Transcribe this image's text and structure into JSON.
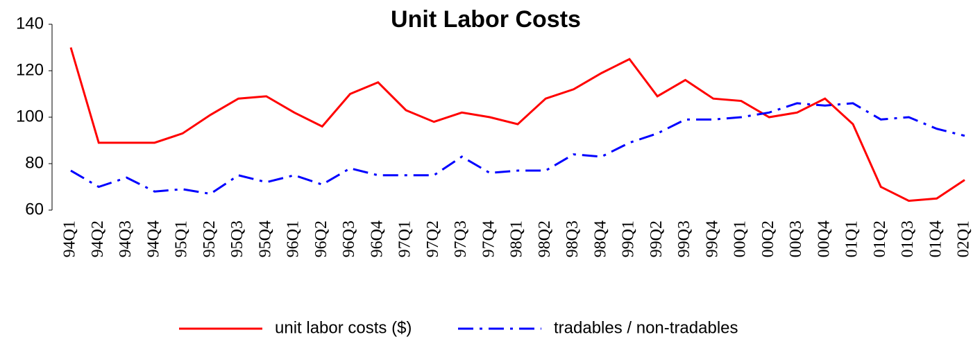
{
  "chart_data": {
    "type": "line",
    "title": "Unit Labor Costs",
    "categories": [
      "94Q1",
      "94Q2",
      "94Q3",
      "94Q4",
      "95Q1",
      "95Q2",
      "95Q3",
      "95Q4",
      "96Q1",
      "96Q2",
      "96Q3",
      "96Q4",
      "97Q1",
      "97Q2",
      "97Q3",
      "97Q4",
      "98Q1",
      "98Q2",
      "98Q3",
      "98Q4",
      "99Q1",
      "99Q2",
      "99Q3",
      "99Q4",
      "00Q1",
      "00Q2",
      "00Q3",
      "00Q4",
      "01Q1",
      "01Q2",
      "01Q3",
      "01Q4",
      "02Q1"
    ],
    "series": [
      {
        "name": "unit labor costs ($)",
        "color": "#ff0000",
        "dash": "solid",
        "values": [
          130,
          89,
          89,
          89,
          93,
          101,
          108,
          109,
          102,
          96,
          110,
          115,
          103,
          98,
          102,
          100,
          97,
          108,
          112,
          119,
          125,
          109,
          116,
          108,
          107,
          100,
          102,
          108,
          97,
          70,
          64,
          65,
          73
        ]
      },
      {
        "name": "tradables / non-tradables",
        "color": "#0000ff",
        "dash": "dashdot",
        "values": [
          77,
          70,
          74,
          68,
          69,
          67,
          75,
          72,
          75,
          71,
          78,
          75,
          75,
          75,
          83,
          76,
          77,
          77,
          84,
          83,
          89,
          93,
          99,
          99,
          100,
          102,
          106,
          105,
          106,
          99,
          100,
          95,
          92
        ]
      }
    ],
    "ylim": [
      60,
      140
    ],
    "yticks": [
      60,
      80,
      100,
      120,
      140
    ],
    "grid": false
  }
}
